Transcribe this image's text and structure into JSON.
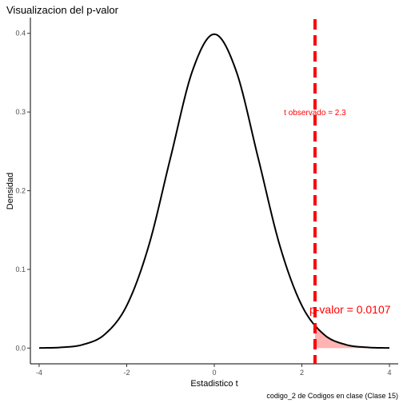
{
  "chart_data": {
    "type": "line",
    "title": "Visualizacion del p-valor",
    "xlabel": "Estadistico t",
    "ylabel": "Densidad",
    "caption": "codigo_2 de Codigos en clase (Clase 15)",
    "xlim": [
      -4.2,
      4.2
    ],
    "ylim": [
      -0.02,
      0.42
    ],
    "x_ticks": [
      -4,
      -2,
      0,
      2,
      4
    ],
    "y_ticks": [
      0.0,
      0.1,
      0.2,
      0.3,
      0.4
    ],
    "x_tick_labels": [
      "-4",
      "-2",
      "0",
      "2",
      "4"
    ],
    "y_tick_labels": [
      "0.0",
      "0.1",
      "0.2",
      "0.3",
      "0.4"
    ],
    "grid": false,
    "series": [
      {
        "x": [
          -4.0,
          -3.5,
          -3.0,
          -2.5,
          -2.0,
          -1.5,
          -1.0,
          -0.5,
          0.0,
          0.5,
          1.0,
          1.5,
          2.0,
          2.5,
          3.0,
          3.5,
          4.0
        ],
        "values": [
          0.0001,
          0.0009,
          0.0044,
          0.0175,
          0.054,
          0.1295,
          0.242,
          0.3521,
          0.3989,
          0.3521,
          0.242,
          0.1295,
          0.054,
          0.0175,
          0.0044,
          0.0009,
          0.0001
        ],
        "color": "#000000"
      }
    ],
    "shaded_region": {
      "from": 2.3,
      "to": 4.0,
      "color": "#ffb3b3"
    },
    "vline": {
      "x": 2.3,
      "color": "#ff0000",
      "style": "dashed"
    },
    "annotations": [
      {
        "text": "t observado = 2.3",
        "x": 2.3,
        "y": 0.3,
        "color": "#ff0000"
      },
      {
        "text": "p-valor = 0.0107",
        "x": 3.1,
        "y": 0.048,
        "color": "#ff0000"
      }
    ]
  }
}
